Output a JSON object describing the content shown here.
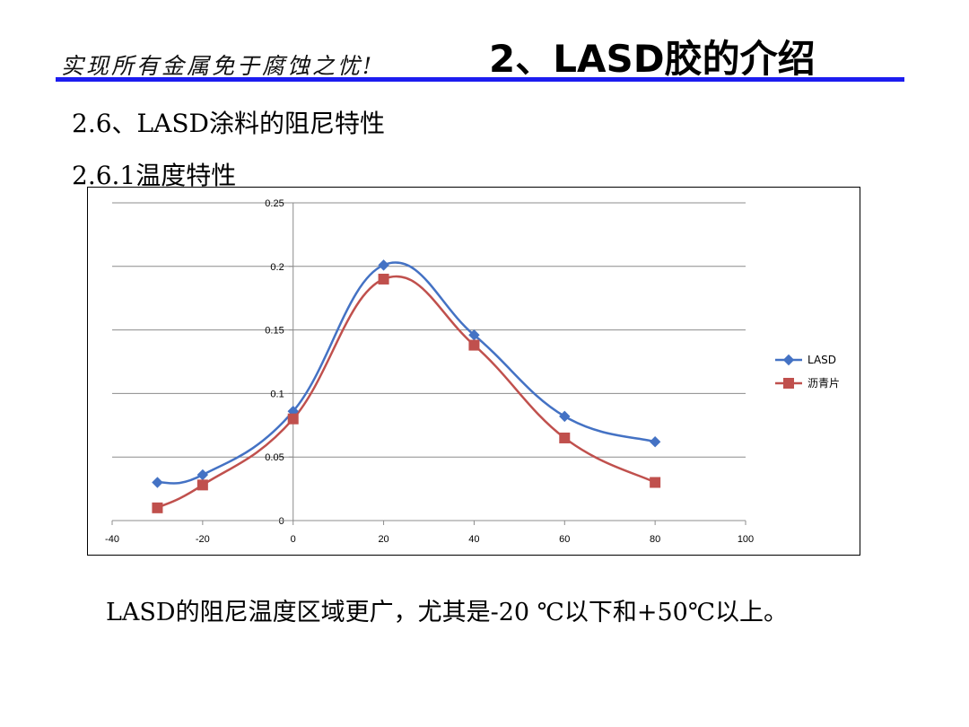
{
  "header": {
    "slogan": "实现所有金属免于腐蚀之忧!",
    "title": "2、LASD胶的介绍",
    "rule_color": "#1c1cf0"
  },
  "sections": {
    "s1": "2.6、LASD涂料的阻尼特性",
    "s2": "2.6.1温度特性"
  },
  "caption": "LASD的阻尼温度区域更广，尤其是-20 ℃以下和+50℃以上。",
  "chart_data": {
    "type": "line",
    "title": "",
    "xlabel": "",
    "ylabel": "",
    "xlim": [
      -40,
      100
    ],
    "ylim": [
      0,
      0.25
    ],
    "x_ticks": [
      -40,
      -20,
      0,
      20,
      40,
      60,
      80,
      100
    ],
    "y_ticks": [
      0,
      0.05,
      0.1,
      0.15,
      0.2,
      0.25
    ],
    "x_tick_labels": [
      "-40",
      "-20",
      "0",
      "20",
      "40",
      "60",
      "80",
      "100"
    ],
    "y_tick_labels": [
      "0",
      "0.05",
      "0.1",
      "0.15",
      "0.2",
      "0.25"
    ],
    "grid": "horizontal",
    "legend_position": "right",
    "smooth": true,
    "series": [
      {
        "name": "LASD",
        "marker": "diamond",
        "color": "#4472c4",
        "x": [
          -30,
          -20,
          0,
          20,
          40,
          60,
          80
        ],
        "y": [
          0.03,
          0.036,
          0.086,
          0.201,
          0.146,
          0.082,
          0.062
        ]
      },
      {
        "name": "沥青片",
        "marker": "square",
        "color": "#c0504d",
        "x": [
          -30,
          -20,
          0,
          20,
          40,
          60,
          80
        ],
        "y": [
          0.01,
          0.028,
          0.08,
          0.19,
          0.138,
          0.065,
          0.03
        ]
      }
    ]
  }
}
